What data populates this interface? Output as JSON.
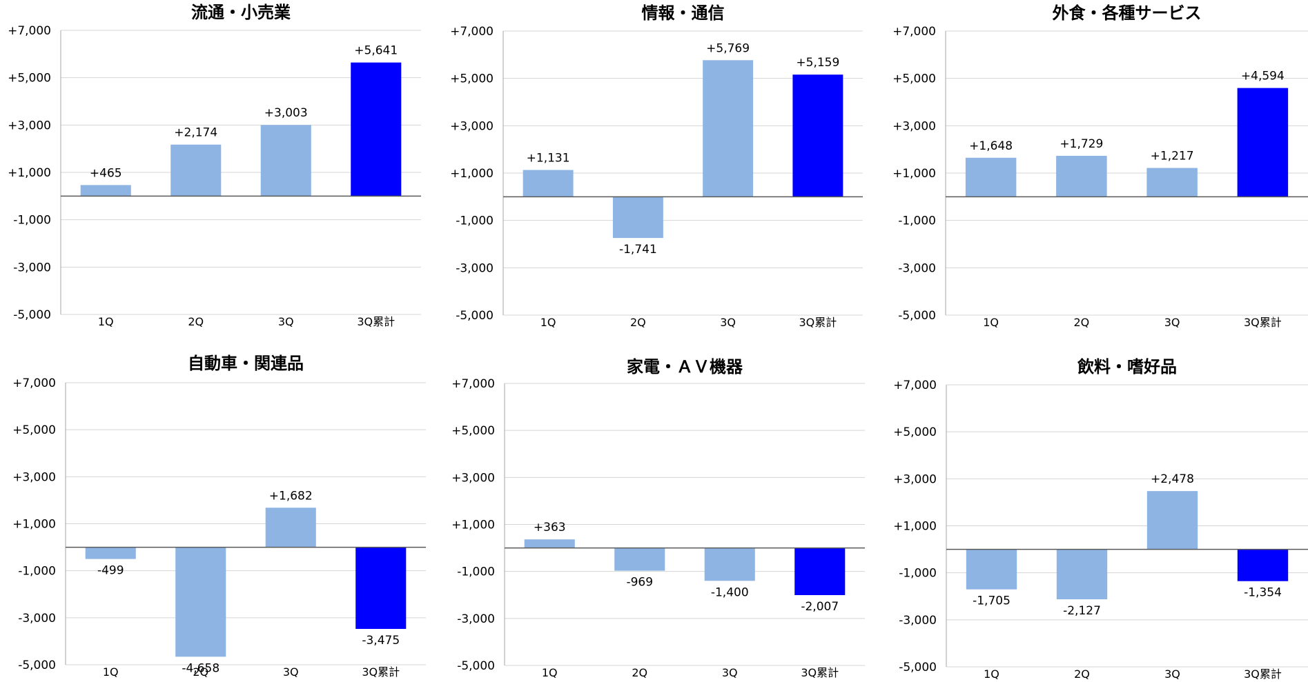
{
  "chart_data": [
    {
      "type": "bar",
      "title": "流通・小売業",
      "categories": [
        "1Q",
        "2Q",
        "3Q",
        "3Q累計"
      ],
      "values": [
        465,
        2174,
        3003,
        5641
      ],
      "data_labels": [
        "+465",
        "+2,174",
        "+3,003",
        "+5,641"
      ],
      "ylim": [
        -5000,
        7000
      ],
      "yticks": [
        7000,
        5000,
        3000,
        1000,
        -1000,
        -3000,
        -5000
      ],
      "ytick_labels": [
        "+7,000",
        "+5,000",
        "+3,000",
        "+1,000",
        "-1,000",
        "-3,000",
        "-5,000"
      ],
      "grid": true
    },
    {
      "type": "bar",
      "title": "情報・通信",
      "categories": [
        "1Q",
        "2Q",
        "3Q",
        "3Q累計"
      ],
      "values": [
        1131,
        -1741,
        5769,
        5159
      ],
      "data_labels": [
        "+1,131",
        "-1,741",
        "+5,769",
        "+5,159"
      ],
      "ylim": [
        -5000,
        7000
      ],
      "yticks": [
        7000,
        5000,
        3000,
        1000,
        -1000,
        -3000,
        -5000
      ],
      "ytick_labels": [
        "+7,000",
        "+5,000",
        "+3,000",
        "+1,000",
        "-1,000",
        "-3,000",
        "-5,000"
      ],
      "grid": true
    },
    {
      "type": "bar",
      "title": "外食・各種サービス",
      "categories": [
        "1Q",
        "2Q",
        "3Q",
        "3Q累計"
      ],
      "values": [
        1648,
        1729,
        1217,
        4594
      ],
      "data_labels": [
        "+1,648",
        "+1,729",
        "+1,217",
        "+4,594"
      ],
      "ylim": [
        -5000,
        7000
      ],
      "yticks": [
        7000,
        5000,
        3000,
        1000,
        -1000,
        -3000,
        -5000
      ],
      "ytick_labels": [
        "+7,000",
        "+5,000",
        "+3,000",
        "+1,000",
        "-1,000",
        "-3,000",
        "-5,000"
      ],
      "grid": true
    },
    {
      "type": "bar",
      "title": "自動車・関連品",
      "categories": [
        "1Q",
        "2Q",
        "3Q",
        "3Q累計"
      ],
      "values": [
        -499,
        -4658,
        1682,
        -3475
      ],
      "data_labels": [
        "-499",
        "-4,658",
        "+1,682",
        "-3,475"
      ],
      "ylim": [
        -5000,
        7000
      ],
      "yticks": [
        7000,
        5000,
        3000,
        1000,
        -1000,
        -3000,
        -5000
      ],
      "ytick_labels": [
        "+7,000",
        "+5,000",
        "+3,000",
        "+1,000",
        "-1,000",
        "-3,000",
        "-5,000"
      ],
      "grid": true
    },
    {
      "type": "bar",
      "title": "家電・ＡＶ機器",
      "categories": [
        "1Q",
        "2Q",
        "3Q",
        "3Q累計"
      ],
      "values": [
        363,
        -969,
        -1400,
        -2007
      ],
      "data_labels": [
        "+363",
        "-969",
        "-1,400",
        "-2,007"
      ],
      "ylim": [
        -5000,
        7000
      ],
      "yticks": [
        7000,
        5000,
        3000,
        1000,
        -1000,
        -3000,
        -5000
      ],
      "ytick_labels": [
        "+7,000",
        "+5,000",
        "+3,000",
        "+1,000",
        "-1,000",
        "-3,000",
        "-5,000"
      ],
      "grid": true
    },
    {
      "type": "bar",
      "title": "飲料・嗜好品",
      "categories": [
        "1Q",
        "2Q",
        "3Q",
        "3Q累計"
      ],
      "values": [
        -1705,
        -2127,
        2478,
        -1354
      ],
      "data_labels": [
        "-1,705",
        "-2,127",
        "+2,478",
        "-1,354"
      ],
      "ylim": [
        -5000,
        7000
      ],
      "yticks": [
        7000,
        5000,
        3000,
        1000,
        -1000,
        -3000,
        -5000
      ],
      "ytick_labels": [
        "+7,000",
        "+5,000",
        "+3,000",
        "+1,000",
        "-1,000",
        "-3,000",
        "-5,000"
      ],
      "grid": true
    }
  ],
  "colors": {
    "quarter_bar": "#8eb4e3",
    "cumulative_bar": "#0000ff",
    "gridline": "#d4d4d4",
    "axis": "#a6a6a6"
  }
}
